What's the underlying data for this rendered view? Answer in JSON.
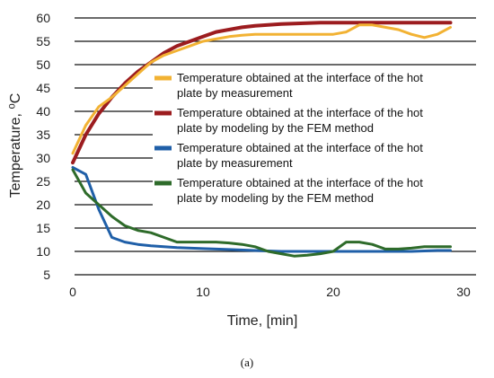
{
  "caption": "(a)",
  "chart_data": {
    "type": "line",
    "xlabel": "Time, [min]",
    "ylabel": "Temperature, ⁰C",
    "xlim": [
      0,
      30
    ],
    "ylim": [
      5,
      60
    ],
    "xticks": [
      0,
      10,
      20,
      30
    ],
    "yticks": [
      5,
      10,
      15,
      20,
      25,
      30,
      35,
      40,
      45,
      50,
      55,
      60
    ],
    "grid": "horizontal",
    "legend_position": "center-right",
    "series": [
      {
        "name": "Temperature obtained at the interface of the hot plate by measurement",
        "color": "#f2b233",
        "x": [
          0,
          1,
          2,
          3,
          4,
          5,
          6,
          7,
          8,
          9,
          10,
          11,
          12,
          13,
          14,
          15,
          16,
          17,
          18,
          19,
          20,
          21,
          22,
          23,
          24,
          25,
          26,
          27,
          28,
          29
        ],
        "y": [
          31,
          37,
          41,
          43,
          45.5,
          48,
          50.5,
          52,
          53,
          54,
          55,
          55.5,
          56,
          56.3,
          56.5,
          56.5,
          56.5,
          56.5,
          56.5,
          56.5,
          56.5,
          57,
          58.5,
          58.5,
          58,
          57.5,
          56.5,
          55.8,
          56.5,
          58
        ]
      },
      {
        "name": "Temperature obtained at the interface of the hot plate by modeling by the FEM method",
        "color": "#9c1c1f",
        "x": [
          0,
          1,
          2,
          3,
          4,
          5,
          6,
          7,
          8,
          9,
          10,
          11,
          12,
          13,
          14,
          15,
          16,
          17,
          18,
          19,
          20,
          21,
          22,
          23,
          24,
          25,
          26,
          27,
          28,
          29
        ],
        "y": [
          29,
          35,
          39.5,
          43,
          46,
          48.5,
          50.5,
          52.5,
          54,
          55,
          56,
          57,
          57.5,
          58,
          58.3,
          58.5,
          58.7,
          58.8,
          58.9,
          59,
          59,
          59,
          59,
          59,
          59,
          59,
          59,
          59,
          59,
          59
        ]
      },
      {
        "name": "Temperature obtained at the interface of the hot plate by measurement",
        "color": "#1f5fa8",
        "x": [
          0,
          1,
          2,
          3,
          4,
          5,
          6,
          7,
          8,
          10,
          12,
          14,
          16,
          18,
          20,
          22,
          24,
          26,
          28,
          29
        ],
        "y": [
          28,
          26.5,
          19,
          13,
          12,
          11.5,
          11.2,
          11,
          10.8,
          10.6,
          10.4,
          10.2,
          10,
          10,
          10,
          10,
          10,
          10,
          10.2,
          10.2
        ]
      },
      {
        "name": "Temperature obtained at the interface of the hot plate by modeling by the FEM method",
        "color": "#2e6b2a",
        "x": [
          0,
          1,
          2,
          3,
          4,
          5,
          6,
          7,
          8,
          9,
          10,
          11,
          12,
          13,
          14,
          15,
          16,
          17,
          18,
          19,
          20,
          21,
          22,
          23,
          24,
          25,
          26,
          27,
          28,
          29
        ],
        "y": [
          27.5,
          22.5,
          20,
          17.5,
          15.5,
          14.5,
          14,
          13,
          12,
          12,
          12,
          12,
          11.8,
          11.5,
          11,
          10,
          9.5,
          9,
          9.2,
          9.5,
          10,
          12,
          12,
          11.5,
          10.5,
          10.5,
          10.7,
          11,
          11,
          11
        ]
      }
    ]
  }
}
